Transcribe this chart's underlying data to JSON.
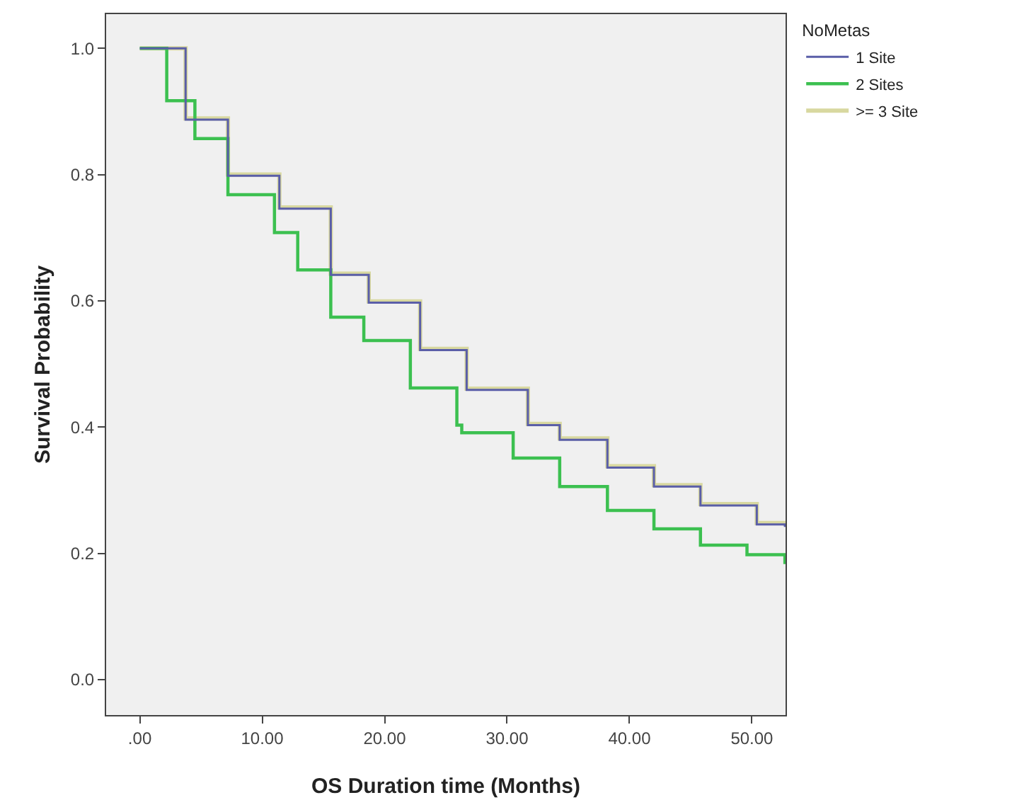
{
  "chart_data": {
    "type": "step",
    "xlabel": "OS Duration time (Months)",
    "ylabel": "Survival Probability",
    "legend_title": "NoMetas",
    "legend": "top right",
    "grid": false,
    "marker": "none",
    "line_style": "solid",
    "xlim": [
      -2.75,
      52.75
    ],
    "xticks": [
      {
        "value": 0,
        "label": ".00"
      },
      {
        "value": 10,
        "label": "10.00"
      },
      {
        "value": 20,
        "label": "20.00"
      },
      {
        "value": 30,
        "label": "30.00"
      },
      {
        "value": 40,
        "label": "40.00"
      },
      {
        "value": 50,
        "label": "50.00"
      }
    ],
    "ylim": [
      -0.056,
      1.054
    ],
    "yticks": [
      {
        "value": 0,
        "label": "0.0"
      },
      {
        "value": 0.2,
        "label": "0.2"
      },
      {
        "value": 0.4,
        "label": "0.4"
      },
      {
        "value": 0.6,
        "label": "0.6"
      },
      {
        "value": 0.8,
        "label": "0.8"
      },
      {
        "value": 1,
        "label": "1.0"
      }
    ],
    "series": [
      {
        "name": "1 Site",
        "color": "#5a5ea8",
        "x": [
          0,
          3.74,
          7.2,
          11.4,
          15.6,
          18.7,
          22.9,
          26.7,
          31.7,
          34.3,
          38.2,
          42.0,
          45.8,
          50.4,
          52.7
        ],
        "values": [
          1.0,
          0.887,
          0.798,
          0.746,
          0.641,
          0.597,
          0.522,
          0.459,
          0.403,
          0.38,
          0.336,
          0.306,
          0.276,
          0.246,
          0.242
        ]
      },
      {
        "name": "2 Sites",
        "color": "#3cc050",
        "x": [
          0,
          2.2,
          4.5,
          7.2,
          11.0,
          12.9,
          15.6,
          18.3,
          22.1,
          25.9,
          26.3,
          30.5,
          34.3,
          38.2,
          42.0,
          45.8,
          49.6,
          52.7
        ],
        "values": [
          1.0,
          0.917,
          0.857,
          0.768,
          0.708,
          0.649,
          0.574,
          0.537,
          0.462,
          0.403,
          0.391,
          0.351,
          0.306,
          0.268,
          0.239,
          0.213,
          0.198,
          0.183
        ]
      },
      {
        "name": ">= 3 Site",
        "color": "#d8d8a0",
        "x": [
          0,
          3.74,
          7.2,
          11.4,
          15.6,
          18.7,
          22.9,
          26.7,
          31.7,
          34.3,
          38.2,
          42.0,
          45.8,
          50.4,
          52.7
        ],
        "values": [
          1.0,
          0.889,
          0.8,
          0.748,
          0.643,
          0.599,
          0.524,
          0.461,
          0.405,
          0.382,
          0.338,
          0.308,
          0.278,
          0.248,
          0.244
        ]
      }
    ]
  }
}
